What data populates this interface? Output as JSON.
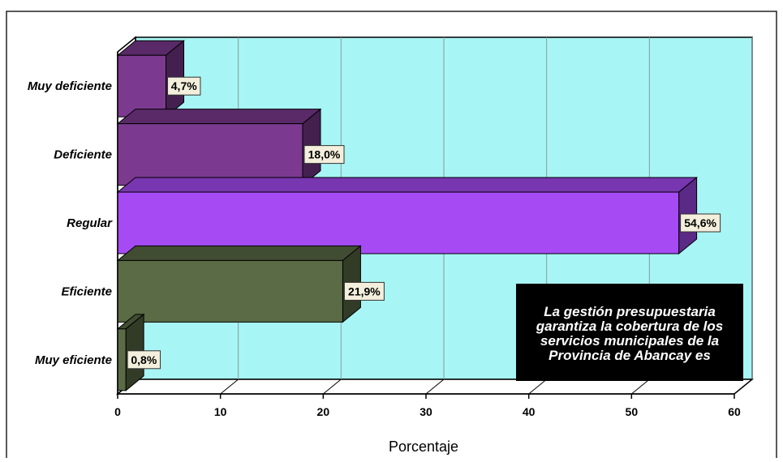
{
  "chart_data": {
    "type": "bar",
    "orientation": "horizontal",
    "categories": [
      "Muy deficiente",
      "Deficiente",
      "Regular",
      "Eficiente",
      "Muy eficiente"
    ],
    "values": [
      4.7,
      18.0,
      54.6,
      21.9,
      0.8
    ],
    "data_labels": [
      "4,7%",
      "18,0%",
      "54,6%",
      "21,9%",
      "0,8%"
    ],
    "colors": [
      "#7b3a8f",
      "#7b3a8f",
      "#a64bf4",
      "#5a6b45",
      "#5a6b45"
    ],
    "xlabel": "Porcentaje",
    "ylabel": "",
    "xlim": [
      0,
      60
    ],
    "xticks": [
      "0",
      "10",
      "20",
      "30",
      "40",
      "50",
      "60"
    ],
    "grid": true,
    "plot_background": "#a8f5f5",
    "annotation": [
      "La gestión presupuestaria",
      "garantiza la cobertura de los",
      "servicios municipales de la",
      "Provincia de Abancay es"
    ]
  }
}
